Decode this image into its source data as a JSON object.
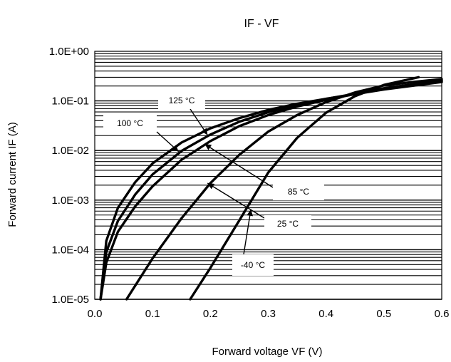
{
  "chart_data": {
    "type": "line",
    "title": "IF - VF",
    "xlabel": "Forward voltage VF (V)",
    "ylabel": "Forward current IF (A)",
    "xlim": [
      0,
      0.6
    ],
    "ylim": [
      1e-05,
      1
    ],
    "yscale": "log",
    "grid": true,
    "legend": "none",
    "x_tick_labels": [
      "0.0",
      "0.1",
      "0.2",
      "0.3",
      "0.4",
      "0.5",
      "0.6"
    ],
    "x_ticks": [
      0,
      0.1,
      0.2,
      0.3,
      0.4,
      0.5,
      0.6
    ],
    "y_tick_labels": [
      "1.0E-05",
      "1.0E-04",
      "1.0E-03",
      "1.0E-02",
      "1.0E-01",
      "1.0E+00"
    ],
    "y_ticks": [
      1e-05,
      0.0001,
      0.001,
      0.01,
      0.1,
      1
    ],
    "series": [
      {
        "name": "125 °C",
        "x": [
          0.01,
          0.02,
          0.04,
          0.07,
          0.1,
          0.15,
          0.2,
          0.25,
          0.3,
          0.35,
          0.4,
          0.5,
          0.6
        ],
        "y": [
          1e-05,
          0.00015,
          0.0007,
          0.0023,
          0.0055,
          0.0145,
          0.028,
          0.045,
          0.066,
          0.088,
          0.11,
          0.17,
          0.24
        ]
      },
      {
        "name": "100 °C",
        "x": [
          0.01,
          0.02,
          0.04,
          0.07,
          0.1,
          0.15,
          0.2,
          0.25,
          0.3,
          0.35,
          0.4,
          0.5,
          0.6
        ],
        "y": [
          1e-05,
          9e-05,
          0.00038,
          0.0013,
          0.0033,
          0.0098,
          0.021,
          0.038,
          0.059,
          0.083,
          0.11,
          0.175,
          0.25
        ]
      },
      {
        "name": "85 °C",
        "x": [
          0.01,
          0.02,
          0.04,
          0.07,
          0.1,
          0.15,
          0.2,
          0.25,
          0.3,
          0.35,
          0.4,
          0.5,
          0.6
        ],
        "y": [
          1e-05,
          5.5e-05,
          0.00023,
          0.00075,
          0.0019,
          0.0065,
          0.0155,
          0.031,
          0.052,
          0.077,
          0.105,
          0.18,
          0.26
        ]
      },
      {
        "name": "25 °C",
        "x": [
          0.055,
          0.1,
          0.15,
          0.2,
          0.25,
          0.3,
          0.35,
          0.4,
          0.45,
          0.5,
          0.55,
          0.6
        ],
        "y": [
          1e-05,
          6.7e-05,
          0.00043,
          0.0022,
          0.0082,
          0.024,
          0.052,
          0.095,
          0.148,
          0.205,
          0.24,
          0.275
        ]
      },
      {
        "name": "-40 °C",
        "x": [
          0.165,
          0.2,
          0.25,
          0.3,
          0.35,
          0.4,
          0.45,
          0.5,
          0.56
        ],
        "y": [
          1e-05,
          4.3e-05,
          0.00039,
          0.0036,
          0.018,
          0.058,
          0.125,
          0.21,
          0.3
        ]
      }
    ],
    "annotations": [
      {
        "text": "125 °C",
        "target_x": 0.195,
        "target_y": 0.0205
      },
      {
        "text": "100 °C",
        "target_x": 0.145,
        "target_y": 0.0095
      },
      {
        "text": "85 °C",
        "target_x": 0.19,
        "target_y": 0.0135
      },
      {
        "text": "25 °C",
        "target_x": 0.195,
        "target_y": 0.0022
      },
      {
        "text": "-40 °C",
        "target_x": 0.27,
        "target_y": 0.00065
      }
    ]
  }
}
